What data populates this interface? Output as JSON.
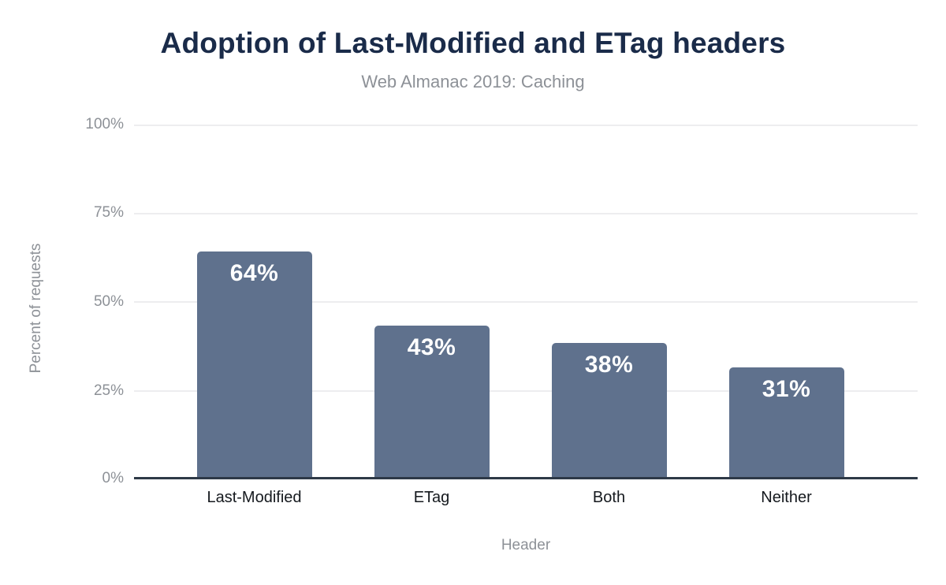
{
  "chart_data": {
    "type": "bar",
    "title": "Adoption of Last-Modified and ETag headers",
    "subtitle": "Web Almanac 2019: Caching",
    "categories": [
      "Last-Modified",
      "ETag",
      "Both",
      "Neither"
    ],
    "values": [
      64,
      43,
      38,
      31
    ],
    "data_labels": [
      "64%",
      "43%",
      "38%",
      "31%"
    ],
    "xlabel": "Header",
    "ylabel": "Percent of requests",
    "ylim": [
      0,
      100
    ],
    "yticks": [
      100,
      75,
      50,
      25,
      0
    ],
    "ytick_labels": [
      "100%",
      "75%",
      "50%",
      "25%",
      "0%"
    ],
    "grid": true,
    "legend": false,
    "colors": {
      "bar": "#5f718d",
      "title": "#1a2b49",
      "muted_text": "#8d9197",
      "category_text": "#15191e",
      "data_label_text": "#ffffff",
      "axis_line": "#2e3947",
      "gridline": "#ededef",
      "background": "#ffffff"
    }
  }
}
